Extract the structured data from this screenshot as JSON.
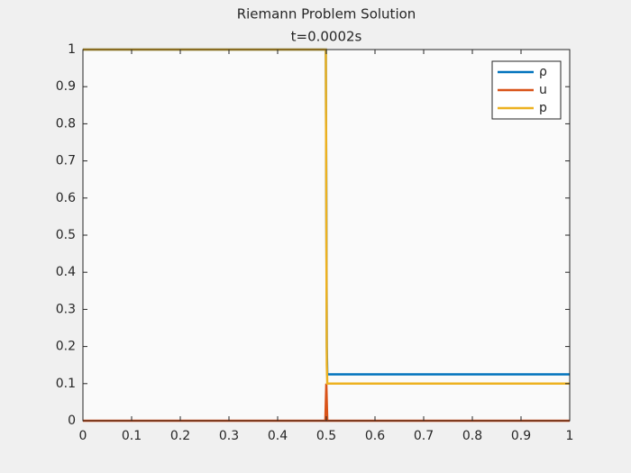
{
  "chart_data": {
    "type": "line",
    "title": "Riemann Problem Solution",
    "subtitle": "t=0.0002s",
    "x": [
      0,
      0.498,
      0.499,
      0.5,
      0.501,
      0.502,
      1
    ],
    "series": [
      {
        "name": "ρ",
        "color": "#0072bd",
        "values": [
          1,
          1,
          1,
          0.6,
          0.2,
          0.125,
          0.125
        ]
      },
      {
        "name": "u",
        "color": "#d95319",
        "values": [
          0,
          0,
          0.05,
          0.1,
          0.05,
          0,
          0
        ]
      },
      {
        "name": "p",
        "color": "#edb120",
        "values": [
          1,
          1,
          1,
          0.55,
          0.15,
          0.1,
          0.1
        ]
      }
    ],
    "xlim": [
      0,
      1
    ],
    "xticks": [
      0,
      0.1,
      0.2,
      0.3,
      0.4,
      0.5,
      0.6,
      0.7,
      0.8,
      0.9,
      1
    ],
    "ylim": [
      0,
      1
    ],
    "yticks": [
      0,
      0.1,
      0.2,
      0.3,
      0.4,
      0.5,
      0.6,
      0.7,
      0.8,
      0.9,
      1
    ],
    "legend": "top-right"
  }
}
